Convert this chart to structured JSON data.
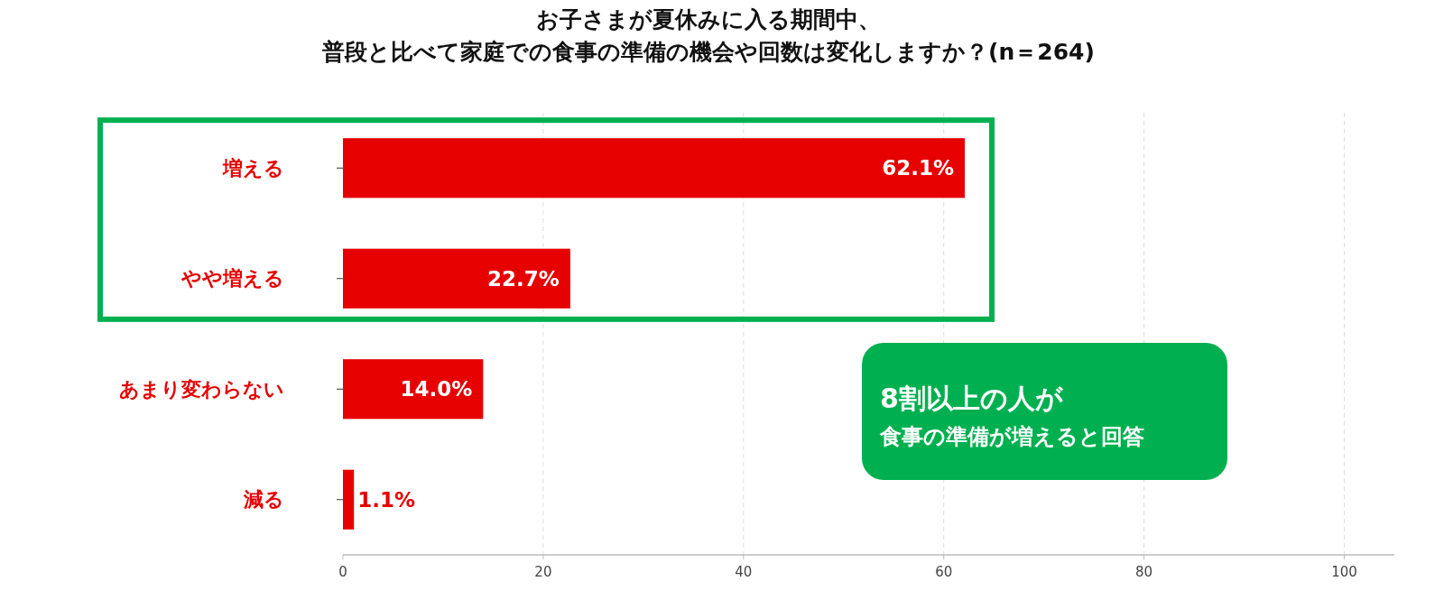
{
  "chart_data": {
    "type": "bar",
    "orientation": "horizontal",
    "title": "お子さまが夏休みに入る期間中、普段と比べて家庭での食事の準備の機会や回数は変化しますか？(n＝264)",
    "categories": [
      "増える",
      "やや増える",
      "あまり変わらない",
      "減る"
    ],
    "values": [
      62.1,
      22.7,
      14.0,
      1.1
    ],
    "value_labels": [
      "62.1%",
      "22.7%",
      "14.0%",
      "1.1%"
    ],
    "color": "#e60000",
    "xlim": [
      0,
      105
    ],
    "xticks": [
      0,
      20,
      40,
      60,
      80,
      100
    ],
    "grid": "x",
    "annotations": [
      "8割以上の人が",
      "食事の準備が増えると回答"
    ]
  }
}
